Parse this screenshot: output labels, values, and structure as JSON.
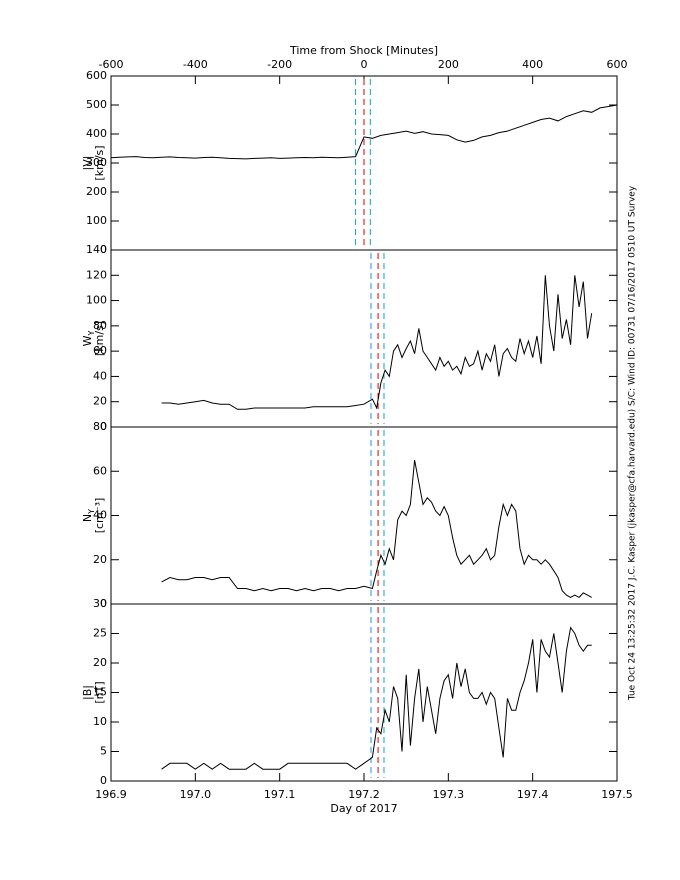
{
  "annotation": "Tue Oct 24 13:25:32 2017   J.C. Kasper (jkasper@cfa.harvard.edu)   S/C: Wind ID: 00731 07/16/2017   0510 UT Survey",
  "chart_data": [
    {
      "type": "line",
      "xaxis": "top",
      "xlabel": "Time from Shock [Minutes]",
      "ylabel": "|V|",
      "yunit": "[km/s]",
      "xlim": [
        -600,
        600
      ],
      "xticks": [
        -600,
        -400,
        -200,
        0,
        200,
        400,
        600
      ],
      "ylim": [
        0,
        600
      ],
      "yticks": [
        0,
        100,
        200,
        300,
        400,
        500,
        600
      ],
      "shock_lines": [
        {
          "x": -20,
          "color": "#1e90ff"
        },
        {
          "x": 0,
          "color": "#e00000"
        },
        {
          "x": 15,
          "color": "#00b0b0"
        }
      ],
      "series": [
        {
          "color": "#000000",
          "x": [
            -600,
            -580,
            -560,
            -540,
            -520,
            -500,
            -480,
            -460,
            -440,
            -420,
            -400,
            -380,
            -360,
            -340,
            -320,
            -300,
            -280,
            -260,
            -240,
            -220,
            -200,
            -180,
            -160,
            -140,
            -120,
            -100,
            -80,
            -60,
            -40,
            -20,
            0,
            20,
            40,
            60,
            80,
            100,
            120,
            140,
            160,
            180,
            200,
            220,
            240,
            260,
            280,
            300,
            320,
            340,
            360,
            380,
            400,
            420,
            440,
            460,
            480,
            500,
            520,
            540,
            560,
            580,
            600
          ],
          "values": [
            318,
            320,
            321,
            322,
            319,
            318,
            320,
            321,
            319,
            318,
            317,
            319,
            320,
            318,
            316,
            315,
            314,
            316,
            317,
            318,
            316,
            317,
            318,
            319,
            318,
            320,
            319,
            318,
            320,
            322,
            390,
            385,
            395,
            400,
            405,
            410,
            402,
            408,
            400,
            398,
            395,
            380,
            372,
            378,
            390,
            395,
            405,
            410,
            420,
            430,
            440,
            450,
            455,
            445,
            460,
            470,
            480,
            475,
            490,
            495,
            500
          ]
        }
      ]
    },
    {
      "type": "line",
      "ylabel": "W",
      "ylabel_sub": "Y",
      "yunit": "[km/s]",
      "xlim": [
        196.9,
        197.5
      ],
      "ylim": [
        0,
        140
      ],
      "yticks": [
        0,
        20,
        40,
        60,
        80,
        100,
        120,
        140
      ],
      "shock_lines": [
        {
          "x": 197.2083,
          "color": "#1e90ff"
        },
        {
          "x": 197.2167,
          "color": "#e00000"
        },
        {
          "x": 197.2237,
          "color": "#00b0b0"
        }
      ],
      "series": [
        {
          "color": "#000000",
          "x": [
            196.96,
            196.97,
            196.98,
            196.99,
            197.0,
            197.01,
            197.02,
            197.03,
            197.04,
            197.05,
            197.06,
            197.07,
            197.08,
            197.09,
            197.1,
            197.11,
            197.12,
            197.13,
            197.14,
            197.15,
            197.16,
            197.17,
            197.18,
            197.19,
            197.2,
            197.21,
            197.215,
            197.22,
            197.225,
            197.23,
            197.235,
            197.24,
            197.245,
            197.25,
            197.255,
            197.26,
            197.265,
            197.27,
            197.275,
            197.28,
            197.285,
            197.29,
            197.295,
            197.3,
            197.305,
            197.31,
            197.315,
            197.32,
            197.325,
            197.33,
            197.335,
            197.34,
            197.345,
            197.35,
            197.355,
            197.36,
            197.365,
            197.37,
            197.375,
            197.38,
            197.385,
            197.39,
            197.395,
            197.4,
            197.405,
            197.41,
            197.415,
            197.42,
            197.425,
            197.43,
            197.435,
            197.44,
            197.445,
            197.45,
            197.455,
            197.46,
            197.465,
            197.47
          ],
          "values": [
            19,
            19,
            18,
            19,
            20,
            21,
            19,
            18,
            18,
            14,
            14,
            15,
            15,
            15,
            15,
            15,
            15,
            15,
            16,
            16,
            16,
            16,
            16,
            17,
            18,
            22,
            15,
            35,
            45,
            40,
            60,
            65,
            55,
            62,
            68,
            58,
            78,
            60,
            55,
            50,
            45,
            55,
            48,
            52,
            45,
            48,
            42,
            55,
            48,
            50,
            60,
            45,
            58,
            52,
            65,
            40,
            58,
            62,
            55,
            52,
            70,
            58,
            68,
            55,
            72,
            50,
            120,
            80,
            60,
            105,
            70,
            85,
            65,
            120,
            95,
            115,
            70,
            90
          ]
        }
      ]
    },
    {
      "type": "line",
      "ylabel": "N",
      "ylabel_sub": "Y",
      "yunit": "[cm⁻³]",
      "xlim": [
        196.9,
        197.5
      ],
      "ylim": [
        0,
        80
      ],
      "yticks": [
        0,
        20,
        40,
        60,
        80
      ],
      "shock_lines": [
        {
          "x": 197.2083,
          "color": "#1e90ff"
        },
        {
          "x": 197.2167,
          "color": "#e00000"
        },
        {
          "x": 197.2237,
          "color": "#00b0b0"
        }
      ],
      "series": [
        {
          "color": "#000000",
          "x": [
            196.96,
            196.97,
            196.98,
            196.99,
            197.0,
            197.01,
            197.02,
            197.03,
            197.04,
            197.05,
            197.06,
            197.07,
            197.08,
            197.09,
            197.1,
            197.11,
            197.12,
            197.13,
            197.14,
            197.15,
            197.16,
            197.17,
            197.18,
            197.19,
            197.2,
            197.21,
            197.215,
            197.22,
            197.225,
            197.23,
            197.235,
            197.24,
            197.245,
            197.25,
            197.255,
            197.26,
            197.265,
            197.27,
            197.275,
            197.28,
            197.285,
            197.29,
            197.295,
            197.3,
            197.305,
            197.31,
            197.315,
            197.32,
            197.325,
            197.33,
            197.335,
            197.34,
            197.345,
            197.35,
            197.355,
            197.36,
            197.365,
            197.37,
            197.375,
            197.38,
            197.385,
            197.39,
            197.395,
            197.4,
            197.405,
            197.41,
            197.415,
            197.42,
            197.425,
            197.43,
            197.435,
            197.44,
            197.445,
            197.45,
            197.455,
            197.46,
            197.465,
            197.47
          ],
          "values": [
            10,
            12,
            11,
            11,
            12,
            12,
            11,
            12,
            12,
            7,
            7,
            6,
            7,
            6,
            7,
            7,
            6,
            7,
            6,
            7,
            7,
            6,
            7,
            7,
            8,
            7,
            15,
            22,
            18,
            25,
            20,
            38,
            42,
            40,
            45,
            65,
            55,
            45,
            48,
            46,
            42,
            40,
            44,
            40,
            30,
            22,
            18,
            20,
            22,
            18,
            20,
            22,
            25,
            20,
            22,
            35,
            45,
            40,
            45,
            42,
            25,
            18,
            22,
            20,
            20,
            18,
            20,
            18,
            15,
            12,
            6,
            4,
            3,
            4,
            3,
            5,
            4,
            3
          ]
        }
      ]
    },
    {
      "type": "line",
      "xaxis": "bottom",
      "xlabel": "Day of 2017",
      "ylabel": "|B|",
      "yunit": "[nT]",
      "xlim": [
        196.9,
        197.5
      ],
      "xticks": [
        196.9,
        {
          "value": 197.0,
          "label": "197.0"
        },
        197.1,
        197.2,
        197.3,
        197.4,
        197.5
      ],
      "ylim": [
        0,
        30
      ],
      "yticks": [
        0,
        5,
        10,
        15,
        20,
        25,
        30
      ],
      "shock_lines": [
        {
          "x": 197.2083,
          "color": "#1e90ff"
        },
        {
          "x": 197.2167,
          "color": "#e00000"
        },
        {
          "x": 197.2237,
          "color": "#00b0b0"
        }
      ],
      "series": [
        {
          "color": "#000000",
          "x": [
            196.96,
            196.97,
            196.98,
            196.99,
            197.0,
            197.01,
            197.02,
            197.03,
            197.04,
            197.05,
            197.06,
            197.07,
            197.08,
            197.09,
            197.1,
            197.11,
            197.12,
            197.13,
            197.14,
            197.15,
            197.16,
            197.17,
            197.18,
            197.19,
            197.2,
            197.21,
            197.215,
            197.22,
            197.225,
            197.23,
            197.235,
            197.24,
            197.245,
            197.25,
            197.255,
            197.26,
            197.265,
            197.27,
            197.275,
            197.28,
            197.285,
            197.29,
            197.295,
            197.3,
            197.305,
            197.31,
            197.315,
            197.32,
            197.325,
            197.33,
            197.335,
            197.34,
            197.345,
            197.35,
            197.355,
            197.36,
            197.365,
            197.37,
            197.375,
            197.38,
            197.385,
            197.39,
            197.395,
            197.4,
            197.405,
            197.41,
            197.415,
            197.42,
            197.425,
            197.43,
            197.435,
            197.44,
            197.445,
            197.45,
            197.455,
            197.46,
            197.465,
            197.47
          ],
          "values": [
            2,
            3,
            3,
            3,
            2,
            3,
            2,
            3,
            2,
            2,
            2,
            3,
            2,
            2,
            2,
            3,
            3,
            3,
            3,
            3,
            3,
            3,
            3,
            2,
            3,
            4,
            9,
            8,
            12,
            10,
            16,
            14,
            5,
            18,
            6,
            14,
            19,
            10,
            16,
            12,
            8,
            14,
            17,
            18,
            14,
            20,
            16,
            19,
            15,
            14,
            14,
            15,
            13,
            15,
            14,
            9,
            4,
            14,
            12,
            12,
            15,
            17,
            20,
            24,
            15,
            24,
            22,
            21,
            25,
            20,
            15,
            22,
            26,
            25,
            23,
            22,
            23,
            23
          ]
        }
      ]
    }
  ]
}
